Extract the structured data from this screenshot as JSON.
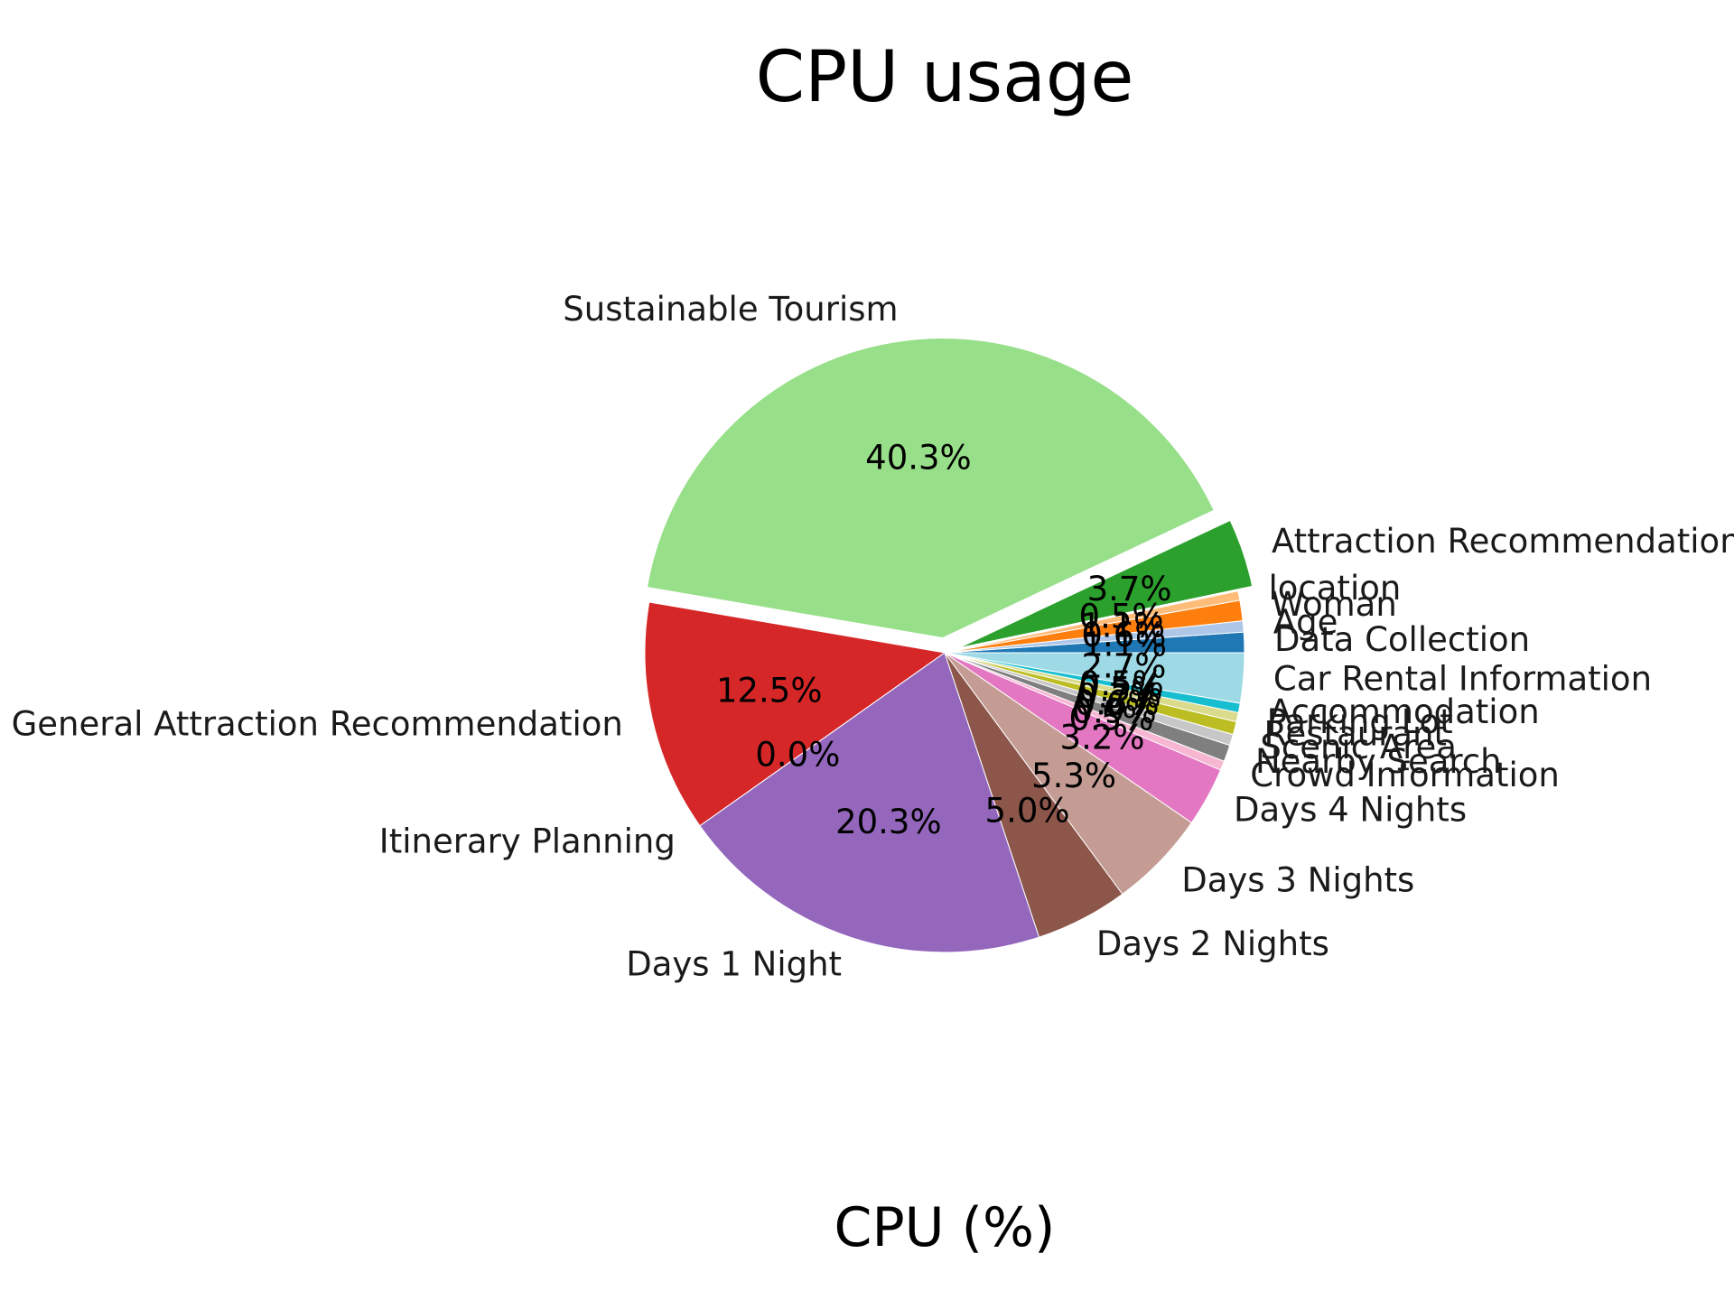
{
  "chart_data": {
    "type": "pie",
    "title": "CPU usage",
    "xlabel": "CPU (%)",
    "start_angle_deg": 0,
    "direction": "counterclockwise",
    "slices": [
      {
        "label": "Data Collection",
        "value": 1.1,
        "pct_label": "1.1%",
        "color": "#1f77b4",
        "explode": 0
      },
      {
        "label": "Age",
        "value": 0.6,
        "pct_label": "0.6%",
        "color": "#aec7e8",
        "explode": 0
      },
      {
        "label": "Woman",
        "value": 1.1,
        "pct_label": "1.1%",
        "color": "#ff7f0e",
        "explode": 0
      },
      {
        "label": "location",
        "value": 0.5,
        "pct_label": "0.5%",
        "color": "#ffbb78",
        "explode": 0
      },
      {
        "label": "Attraction Recommendation",
        "value": 3.7,
        "pct_label": "3.7%",
        "color": "#2ca02c",
        "explode": 0.05
      },
      {
        "label": "Sustainable Tourism",
        "value": 40.3,
        "pct_label": "40.3%",
        "color": "#98df8a",
        "explode": 0.05
      },
      {
        "label": "General Attraction Recommendation",
        "value": 12.5,
        "pct_label": "12.5%",
        "color": "#d62728",
        "explode": 0
      },
      {
        "label": "Itinerary Planning",
        "value": 0.0,
        "pct_label": "0.0%",
        "color": "#ff9896",
        "explode": 0
      },
      {
        "label": "Days 1 Night",
        "value": 20.3,
        "pct_label": "20.3%",
        "color": "#9467bd",
        "explode": 0
      },
      {
        "label": "Days 2 Nights",
        "value": 5.0,
        "pct_label": "5.0%",
        "color": "#8c564b",
        "explode": 0
      },
      {
        "label": "Days 3 Nights",
        "value": 5.3,
        "pct_label": "5.3%",
        "color": "#c49c94",
        "explode": 0
      },
      {
        "label": "Days 4 Nights",
        "value": 3.2,
        "pct_label": "3.2%",
        "color": "#e377c2",
        "explode": 0
      },
      {
        "label": "Crowd Information",
        "value": 0.5,
        "pct_label": "0.5%",
        "color": "#f7b6d2",
        "explode": 0
      },
      {
        "label": "Nearby Search",
        "value": 0.9,
        "pct_label": "0.9%",
        "color": "#7f7f7f",
        "explode": 0
      },
      {
        "label": "Scenic Area",
        "value": 0.6,
        "pct_label": "0.6%",
        "color": "#c7c7c7",
        "explode": 0
      },
      {
        "label": "Restaurant",
        "value": 0.7,
        "pct_label": "0.7%",
        "color": "#bcbd22",
        "explode": 0
      },
      {
        "label": "Parking Lot",
        "value": 0.5,
        "pct_label": "0.5%",
        "color": "#dbdb8d",
        "explode": 0
      },
      {
        "label": "Accommodation",
        "value": 0.5,
        "pct_label": "0.5%",
        "color": "#17becf",
        "explode": 0
      },
      {
        "label": "Car Rental Information",
        "value": 2.7,
        "pct_label": "2.7%",
        "color": "#9edae5",
        "explode": 0
      }
    ]
  }
}
